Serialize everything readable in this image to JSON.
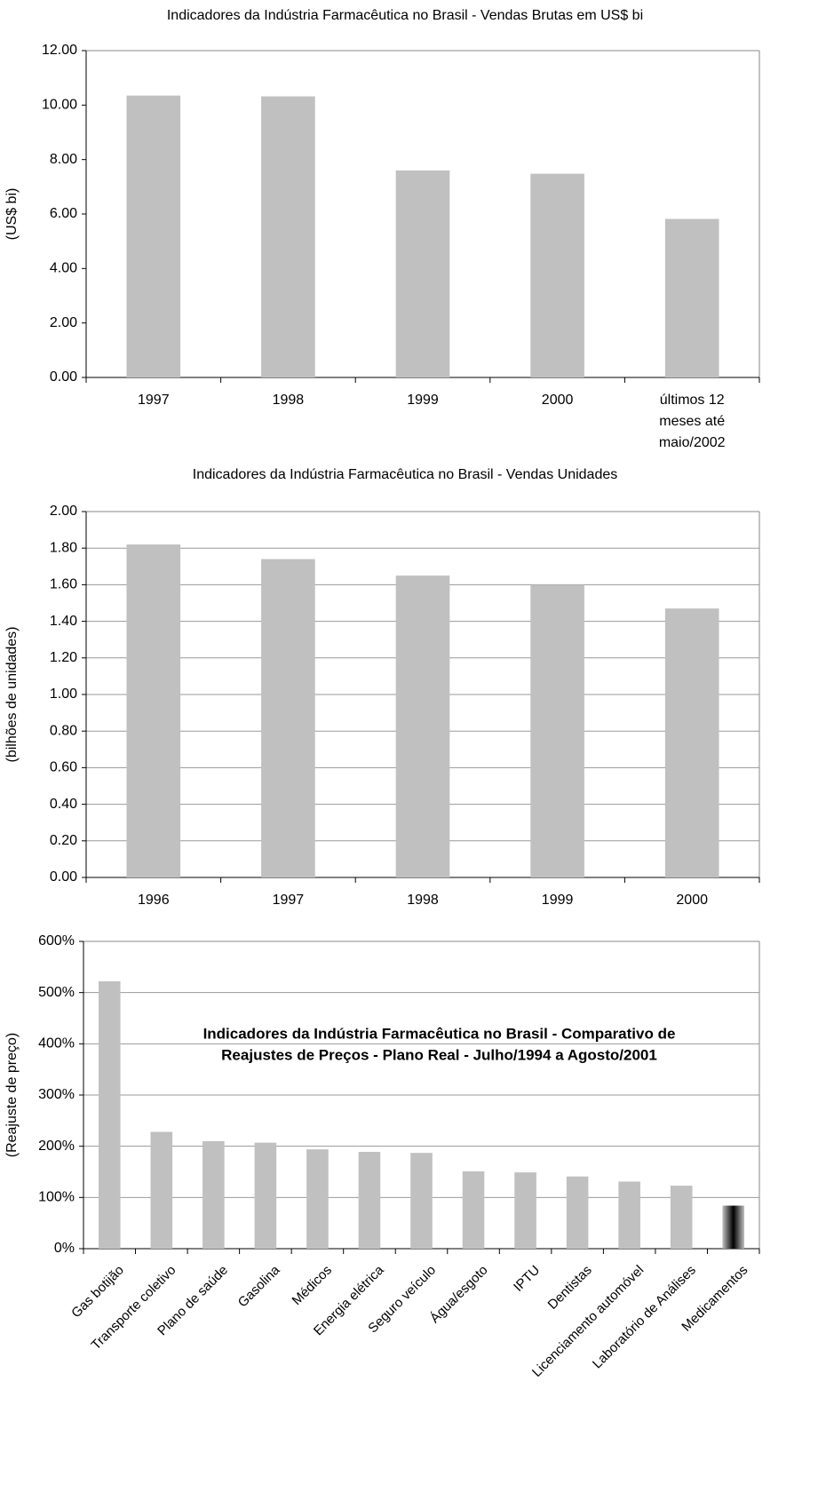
{
  "chart_data": [
    {
      "type": "bar",
      "title": "Indicadores da Indústria Farmacêutica no Brasil - Vendas Brutas em US$ bi",
      "y_label": "(US$ bi)",
      "categories": [
        "1997",
        "1998",
        "1999",
        "2000",
        "últimos 12 meses até maio/2002"
      ],
      "values": [
        10.35,
        10.32,
        7.6,
        7.48,
        5.82
      ],
      "color": "#c0c0c0",
      "ylim": [
        0,
        12
      ],
      "yticks": [
        {
          "value": 0,
          "label": "0.00"
        },
        {
          "value": 2,
          "label": "2.00"
        },
        {
          "value": 4,
          "label": "4.00"
        },
        {
          "value": 6,
          "label": "6.00"
        },
        {
          "value": 8,
          "label": "8.00"
        },
        {
          "value": 10,
          "label": "10.00"
        },
        {
          "value": 12,
          "label": "12.00"
        }
      ],
      "grid": false
    },
    {
      "type": "bar",
      "title": "Indicadores da Indústria Farmacêutica no Brasil - Vendas Unidades",
      "y_label": "(bilhões de unidades)",
      "categories": [
        "1996",
        "1997",
        "1998",
        "1999",
        "2000"
      ],
      "values": [
        1.82,
        1.74,
        1.65,
        1.6,
        1.47
      ],
      "color": "#c0c0c0",
      "ylim": [
        0,
        2
      ],
      "yticks": [
        {
          "value": 0,
          "label": "0.00"
        },
        {
          "value": 0.2,
          "label": "0.20"
        },
        {
          "value": 0.4,
          "label": "0.40"
        },
        {
          "value": 0.6,
          "label": "0.60"
        },
        {
          "value": 0.8,
          "label": "0.80"
        },
        {
          "value": 1,
          "label": "1.00"
        },
        {
          "value": 1.2,
          "label": "1.20"
        },
        {
          "value": 1.4,
          "label": "1.40"
        },
        {
          "value": 1.6,
          "label": "1.60"
        },
        {
          "value": 1.8,
          "label": "1.80"
        },
        {
          "value": 2,
          "label": "2.00"
        }
      ],
      "grid": true
    },
    {
      "type": "bar",
      "title": [
        "Indicadores da Indústria Farmacêutica no Brasil - Comparativo de",
        "Reajustes de Preços - Plano Real - Julho/1994 a Agosto/2001"
      ],
      "y_label": "(Reajuste de preço)",
      "categories": [
        "Gas botijão",
        "Transporte coletivo",
        "Plano de saúde",
        "Gasolina",
        "Médicos",
        "Energia elétrica",
        "Seguro veículo",
        "Água/esgoto",
        "IPTU",
        "Dentistas",
        "Licenciamento automóvel",
        "Laboratório de Análises",
        "Medicamentos"
      ],
      "values": [
        522,
        228,
        210,
        207,
        194,
        189,
        187,
        151,
        149,
        141,
        131,
        123,
        84
      ],
      "colors": [
        "#c0c0c0",
        "#c0c0c0",
        "#c0c0c0",
        "#c0c0c0",
        "#c0c0c0",
        "#c0c0c0",
        "#c0c0c0",
        "#c0c0c0",
        "#c0c0c0",
        "#c0c0c0",
        "#c0c0c0",
        "#c0c0c0",
        "#000000"
      ],
      "color": "#c0c0c0",
      "ylim": [
        0,
        600
      ],
      "yticks": [
        {
          "value": 0,
          "label": "0%"
        },
        {
          "value": 100,
          "label": "100%"
        },
        {
          "value": 200,
          "label": "200%"
        },
        {
          "value": 300,
          "label": "300%"
        },
        {
          "value": 400,
          "label": "400%"
        },
        {
          "value": 500,
          "label": "500%"
        },
        {
          "value": 600,
          "label": "600%"
        }
      ],
      "grid": true
    }
  ]
}
